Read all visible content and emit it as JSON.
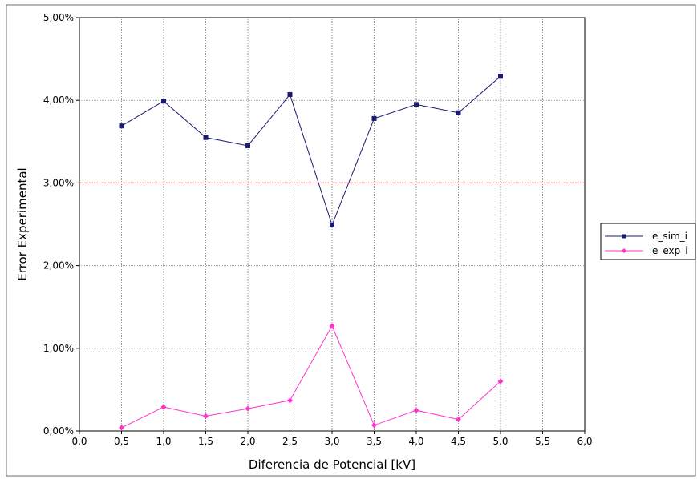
{
  "chart_data": {
    "type": "line",
    "title": "",
    "xlabel": "Diferencia de Potencial [kV]",
    "ylabel": "Error Experimental",
    "xlim": [
      0,
      6
    ],
    "ylim": [
      0,
      0.05
    ],
    "x_ticks": [
      "0,0",
      "0,5",
      "1,0",
      "1,5",
      "2,0",
      "2,5",
      "3,0",
      "3,5",
      "4,0",
      "4,5",
      "5,0",
      "5,5",
      "6,0"
    ],
    "y_ticks": [
      "0,00%",
      "1,00%",
      "2,00%",
      "3,00%",
      "4,00%",
      "5,00%"
    ],
    "grid": true,
    "legend_position": "right",
    "reference_line": {
      "y": 0.03,
      "color": "#e0443a"
    },
    "series": [
      {
        "name": "e_sim_i",
        "color": "#1a1a6e",
        "marker": "square",
        "x": [
          0.5,
          1.0,
          1.5,
          2.0,
          2.5,
          3.0,
          3.5,
          4.0,
          4.5,
          5.0
        ],
        "values": [
          0.0369,
          0.0399,
          0.0355,
          0.0345,
          0.0407,
          0.0249,
          0.0378,
          0.0395,
          0.0385,
          0.0429
        ]
      },
      {
        "name": "e_exp_i",
        "color": "#ff33cc",
        "marker": "diamond",
        "x": [
          0.5,
          1.0,
          1.5,
          2.0,
          2.5,
          3.0,
          3.5,
          4.0,
          4.5,
          5.0
        ],
        "values": [
          0.0004,
          0.0029,
          0.0018,
          0.0027,
          0.0037,
          0.0127,
          0.0007,
          0.0025,
          0.0014,
          0.006
        ]
      }
    ]
  }
}
